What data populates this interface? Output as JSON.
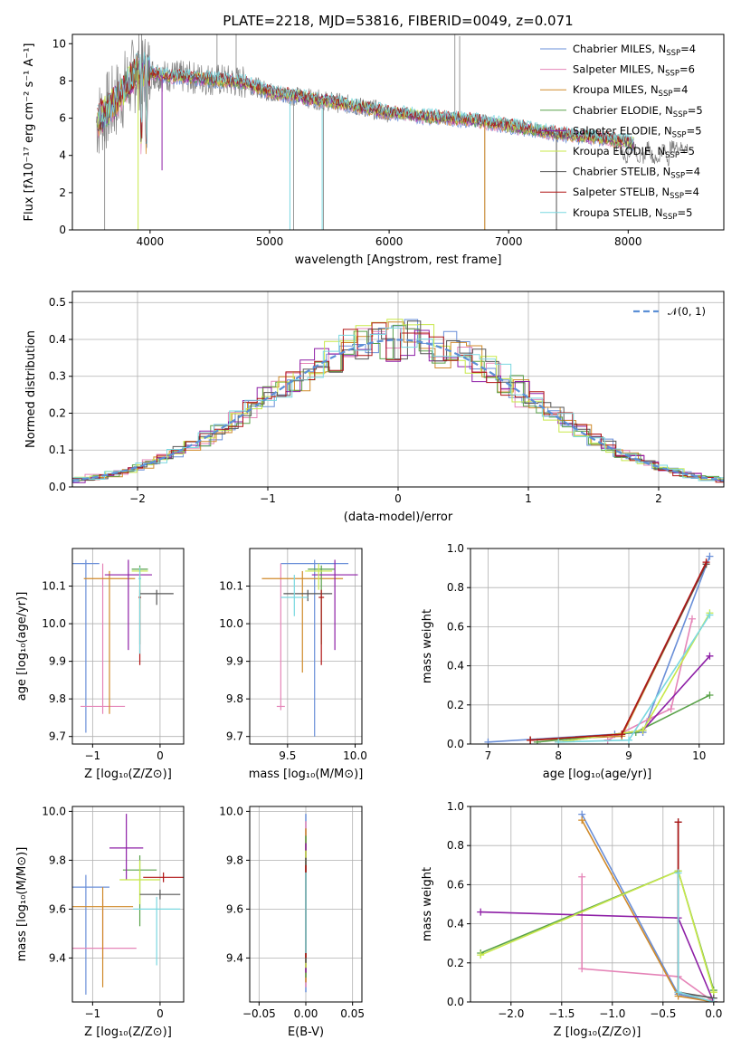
{
  "colors": {
    "chabrier_miles": "#6a8fd8",
    "salpeter_miles": "#e585b8",
    "kroupa_miles": "#d08a2a",
    "chabrier_elodie": "#5aa24a",
    "salpeter_elodie": "#8e1fa6",
    "kroupa_elodie": "#c8e84a",
    "chabrier_stelib": "#555555",
    "salpeter_stelib": "#b01414",
    "kroupa_stelib": "#7ad8e0",
    "data": "#808080"
  },
  "chart_data": [
    {
      "id": "spectrum",
      "type": "line",
      "title": "PLATE=2218, MJD=53816, FIBERID=0049, z=0.071",
      "xlabel": "wavelength [Angstrom, rest frame]",
      "ylabel": "Flux [fλ10⁻¹⁷ erg cm⁻² s⁻¹ A⁻¹]",
      "xlim": [
        3350,
        8800
      ],
      "ylim": [
        0,
        10.5
      ],
      "xticks": [
        4000,
        5000,
        6000,
        7000,
        8000
      ],
      "yticks": [
        0,
        2,
        4,
        6,
        8,
        10
      ],
      "legend_position": "top-right",
      "legend": [
        "Chabrier MILES, N_SSP=4",
        "Salpeter MILES, N_SSP=6",
        "Kroupa MILES, N_SSP=4",
        "Chabrier ELODIE, N_SSP=5",
        "Salpeter ELODIE, N_SSP=5",
        "Kroupa ELODIE, N_SSP=5",
        "Chabrier STELIB, N_SSP=4",
        "Salpeter STELIB, N_SSP=4",
        "Kroupa STELIB, N_SSP=5"
      ],
      "continuum_x": [
        3550,
        3700,
        3900,
        4100,
        4300,
        4500,
        4800,
        5000,
        5300,
        5600,
        6000,
        6300,
        6700,
        7000,
        7400,
        7800,
        8100,
        8500
      ],
      "continuum_y": [
        5.8,
        6.8,
        8.6,
        8.3,
        8.2,
        8.1,
        7.9,
        7.4,
        7.1,
        6.8,
        6.3,
        6.1,
        5.9,
        5.6,
        5.2,
        4.9,
        4.6,
        4.4
      ]
    },
    {
      "id": "residuals",
      "type": "histogram",
      "xlabel": "(data-model)/error",
      "ylabel": "Normed distribution",
      "xlim": [
        -2.5,
        2.5
      ],
      "ylim": [
        0,
        0.53
      ],
      "xticks": [
        -2,
        -1,
        0,
        1,
        2
      ],
      "yticks": [
        0.0,
        0.1,
        0.2,
        0.3,
        0.4,
        0.5
      ],
      "reference": "N(0,1)",
      "legend_label": "𝒩(0, 1)"
    },
    {
      "id": "age_vs_Z",
      "type": "errorbar",
      "xlabel": "Z [log₁₀(Z/Z⊙)]",
      "ylabel": "age  [log₁₀(age/yr)]",
      "xlim": [
        -1.3,
        0.35
      ],
      "ylim": [
        9.68,
        10.2
      ],
      "xticks": [
        -1,
        0
      ],
      "yticks": [
        9.7,
        9.8,
        9.9,
        10.0,
        10.1
      ],
      "points": [
        {
          "x": -1.1,
          "y": 10.16,
          "xerr": 0.2,
          "yerr": [
            0.45,
            0.01
          ]
        },
        {
          "x": -0.85,
          "y": 9.78,
          "xerr": 0.33,
          "yerr": [
            0.02,
            0.38
          ]
        },
        {
          "x": -0.75,
          "y": 10.12,
          "xerr": 0.38,
          "yerr": [
            0.36,
            0.02
          ]
        },
        {
          "x": -0.3,
          "y": 10.145,
          "xerr": 0.12,
          "yerr": [
            0.2,
            0.01
          ]
        },
        {
          "x": -0.47,
          "y": 10.13,
          "xerr": 0.35,
          "yerr": [
            0.2,
            0.04
          ]
        },
        {
          "x": -0.3,
          "y": 10.14,
          "xerr": 0.12,
          "yerr": [
            0.1,
            0.01
          ]
        },
        {
          "x": -0.05,
          "y": 10.08,
          "xerr": 0.25,
          "yerr": [
            0.03,
            0.01
          ]
        },
        {
          "x": -0.3,
          "y": 10.07,
          "xerr": 0.02,
          "yerr": [
            0.18,
            0.02
          ]
        },
        {
          "x": -0.3,
          "y": 10.12,
          "xerr": 0.02,
          "yerr": [
            0.2,
            0.03
          ]
        }
      ]
    },
    {
      "id": "age_vs_mass",
      "type": "errorbar",
      "xlabel": "mass [log₁₀(M/M⊙)]",
      "ylabel": "",
      "xlim": [
        9.22,
        10.05
      ],
      "ylim": [
        9.68,
        10.2
      ],
      "xticks": [
        9.5,
        10.0
      ],
      "yticks": [
        9.7,
        9.8,
        9.9,
        10.0,
        10.1
      ],
      "points": [
        {
          "x": 9.7,
          "y": 10.16,
          "xerr": 0.25,
          "yerr": [
            0.46,
            0.01
          ]
        },
        {
          "x": 9.45,
          "y": 9.78,
          "xerr": 0.03,
          "yerr": [
            0.01,
            0.38
          ]
        },
        {
          "x": 9.61,
          "y": 10.12,
          "xerr": 0.3,
          "yerr": [
            0.25,
            0.02
          ]
        },
        {
          "x": 9.75,
          "y": 10.145,
          "xerr": 0.1,
          "yerr": [
            0.2,
            0.01
          ]
        },
        {
          "x": 9.85,
          "y": 10.13,
          "xerr": 0.17,
          "yerr": [
            0.2,
            0.04
          ]
        },
        {
          "x": 9.73,
          "y": 10.14,
          "xerr": 0.1,
          "yerr": [
            0.05,
            0.02
          ]
        },
        {
          "x": 9.65,
          "y": 10.08,
          "xerr": 0.18,
          "yerr": [
            0.02,
            0.01
          ]
        },
        {
          "x": 9.75,
          "y": 10.07,
          "xerr": 0.02,
          "yerr": [
            0.18,
            0.02
          ]
        },
        {
          "x": 9.55,
          "y": 10.07,
          "xerr": 0.1,
          "yerr": [
            0.05,
            0.06
          ]
        }
      ]
    },
    {
      "id": "weight_vs_age",
      "type": "line",
      "xlabel": "age  [log₁₀(age/yr)]",
      "ylabel": "mass weight",
      "xlim": [
        6.75,
        10.35
      ],
      "ylim": [
        0,
        1.0
      ],
      "xticks": [
        7,
        8,
        9,
        10
      ],
      "yticks": [
        0.0,
        0.2,
        0.4,
        0.6,
        0.8,
        1.0
      ],
      "series": [
        {
          "x": [
            7.0,
            8.8,
            9.2,
            10.15
          ],
          "y": [
            0.01,
            0.05,
            0.06,
            0.96
          ]
        },
        {
          "x": [
            8.7,
            9.3,
            9.6,
            9.9
          ],
          "y": [
            0.02,
            0.13,
            0.18,
            0.64
          ]
        },
        {
          "x": [
            7.6,
            8.9,
            10.1
          ],
          "y": [
            0.02,
            0.04,
            0.92
          ]
        },
        {
          "x": [
            7.7,
            9.1,
            10.15
          ],
          "y": [
            0.01,
            0.06,
            0.25
          ]
        },
        {
          "x": [
            8.0,
            9.2,
            10.15
          ],
          "y": [
            0.01,
            0.07,
            0.45
          ]
        },
        {
          "x": [
            8.0,
            9.2,
            10.15
          ],
          "y": [
            0.01,
            0.07,
            0.67
          ]
        },
        {
          "x": [
            7.6,
            8.9,
            10.1
          ],
          "y": [
            0.02,
            0.05,
            0.92
          ]
        },
        {
          "x": [
            7.6,
            8.9,
            10.1
          ],
          "y": [
            0.02,
            0.05,
            0.93
          ]
        },
        {
          "x": [
            8.0,
            9.0,
            10.15
          ],
          "y": [
            0.01,
            0.02,
            0.66
          ]
        }
      ]
    },
    {
      "id": "mass_vs_Z",
      "type": "errorbar",
      "xlabel": "Z [log₁₀(Z/Z⊙)]",
      "ylabel": "mass [log₁₀(M/M⊙)]",
      "xlim": [
        -1.3,
        0.35
      ],
      "ylim": [
        9.22,
        10.02
      ],
      "xticks": [
        -1,
        0
      ],
      "yticks": [
        9.4,
        9.6,
        9.8,
        10.0
      ],
      "points": [
        {
          "x": -1.1,
          "y": 9.69,
          "xerr": 0.35,
          "yerr": [
            0.44,
            0.05
          ]
        },
        {
          "x": -0.85,
          "y": 9.44,
          "xerr": 0.5,
          "yerr": [
            0.04,
            0.2
          ]
        },
        {
          "x": -0.85,
          "y": 9.61,
          "xerr": 0.45,
          "yerr": [
            0.33,
            0.08
          ]
        },
        {
          "x": -0.3,
          "y": 9.76,
          "xerr": 0.25,
          "yerr": [
            0.23,
            0.06
          ]
        },
        {
          "x": -0.5,
          "y": 9.85,
          "xerr": 0.25,
          "yerr": [
            0.13,
            0.14
          ]
        },
        {
          "x": -0.3,
          "y": 9.72,
          "xerr": 0.3,
          "yerr": [
            0.1,
            0.08
          ]
        },
        {
          "x": 0.0,
          "y": 9.66,
          "xerr": 0.3,
          "yerr": [
            0.02,
            0.02
          ]
        },
        {
          "x": 0.05,
          "y": 9.73,
          "xerr": 0.3,
          "yerr": [
            0.02,
            0.02
          ]
        },
        {
          "x": -0.05,
          "y": 9.6,
          "xerr": 0.35,
          "yerr": [
            0.23,
            0.05
          ]
        }
      ]
    },
    {
      "id": "mass_vs_ebv",
      "type": "errorbar",
      "xlabel": "E(B-V)",
      "ylabel": "",
      "xlim": [
        -0.06,
        0.06
      ],
      "ylim": [
        9.22,
        10.02
      ],
      "xticks": [
        -0.05,
        0.0,
        0.05
      ],
      "yticks": [
        9.4,
        9.6,
        9.8,
        10.0
      ],
      "vertical_extent": [
        9.26,
        9.99
      ]
    },
    {
      "id": "weight_vs_Z",
      "type": "line",
      "xlabel": "Z [log₁₀(Z/Z⊙)]",
      "ylabel": "mass weight",
      "xlim": [
        -2.4,
        0.1
      ],
      "ylim": [
        0,
        1.0
      ],
      "xticks": [
        -2.0,
        -1.5,
        -1.0,
        -0.5,
        0.0
      ],
      "yticks": [
        0.0,
        0.2,
        0.4,
        0.6,
        0.8,
        1.0
      ],
      "series": [
        {
          "x": [
            -1.3,
            -0.35,
            0.0
          ],
          "y": [
            0.96,
            0.04,
            0.0
          ]
        },
        {
          "x": [
            -1.3,
            -1.3,
            -0.35,
            0.0
          ],
          "y": [
            0.64,
            0.17,
            0.13,
            0.0
          ]
        },
        {
          "x": [
            -1.3,
            -0.35,
            0.0
          ],
          "y": [
            0.93,
            0.03,
            0.0
          ]
        },
        {
          "x": [
            -2.3,
            -0.35,
            0.0
          ],
          "y": [
            0.25,
            0.67,
            0.06
          ]
        },
        {
          "x": [
            -2.3,
            -0.35,
            0.0
          ],
          "y": [
            0.46,
            0.43,
            0.0
          ]
        },
        {
          "x": [
            -2.3,
            -0.35,
            0.0
          ],
          "y": [
            0.24,
            0.67,
            0.05
          ]
        },
        {
          "x": [
            -0.35,
            -0.35,
            0.0
          ],
          "y": [
            0.92,
            0.05,
            0.02
          ]
        },
        {
          "x": [
            -0.35,
            -0.35,
            0.0
          ],
          "y": [
            0.92,
            0.05,
            0.0
          ]
        },
        {
          "x": [
            -0.35,
            -0.35,
            0.0
          ],
          "y": [
            0.66,
            0.05,
            0.0
          ]
        }
      ]
    }
  ]
}
